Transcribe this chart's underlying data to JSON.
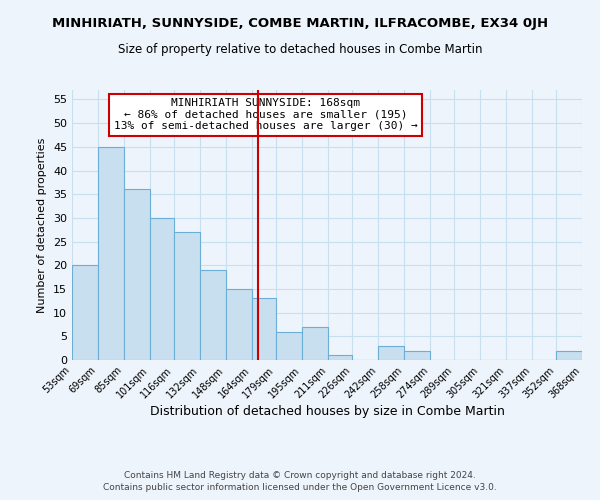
{
  "title": "MINHIRIATH, SUNNYSIDE, COMBE MARTIN, ILFRACOMBE, EX34 0JH",
  "subtitle": "Size of property relative to detached houses in Combe Martin",
  "xlabel": "Distribution of detached houses by size in Combe Martin",
  "ylabel": "Number of detached properties",
  "bar_edges": [
    53,
    69,
    85,
    101,
    116,
    132,
    148,
    164,
    179,
    195,
    211,
    226,
    242,
    258,
    274,
    289,
    305,
    321,
    337,
    352,
    368
  ],
  "bar_heights": [
    20,
    45,
    36,
    30,
    27,
    19,
    15,
    13,
    6,
    7,
    1,
    0,
    3,
    2,
    0,
    0,
    0,
    0,
    0,
    2
  ],
  "bar_color": "#c8dff0",
  "bar_edge_color": "#6baed6",
  "grid_color": "#c8dff0",
  "vline_x": 168,
  "vline_color": "#cc0000",
  "ylim": [
    0,
    57
  ],
  "yticks": [
    0,
    5,
    10,
    15,
    20,
    25,
    30,
    35,
    40,
    45,
    50,
    55
  ],
  "annotation_title": "MINHIRIATH SUNNYSIDE: 168sqm",
  "annotation_line1": "← 86% of detached houses are smaller (195)",
  "annotation_line2": "13% of semi-detached houses are larger (30) →",
  "footer1": "Contains HM Land Registry data © Crown copyright and database right 2024.",
  "footer2": "Contains public sector information licensed under the Open Government Licence v3.0.",
  "tick_labels": [
    "53sqm",
    "69sqm",
    "85sqm",
    "101sqm",
    "116sqm",
    "132sqm",
    "148sqm",
    "164sqm",
    "179sqm",
    "195sqm",
    "211sqm",
    "226sqm",
    "242sqm",
    "258sqm",
    "274sqm",
    "289sqm",
    "305sqm",
    "321sqm",
    "337sqm",
    "352sqm",
    "368sqm"
  ],
  "bg_color": "#eef4fb"
}
